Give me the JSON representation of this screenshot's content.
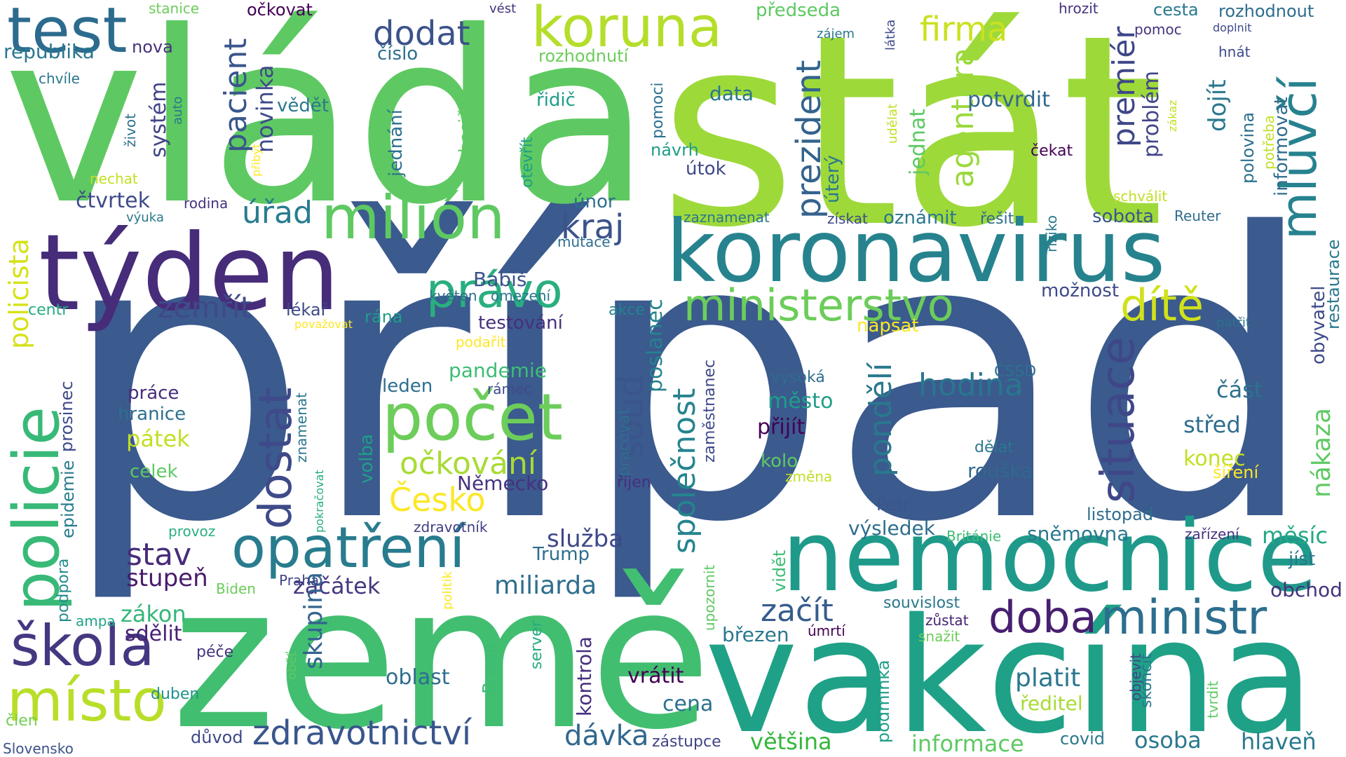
{
  "words": [
    {
      "text": "případ",
      "color": "#3b5a8e"
    },
    {
      "text": "vláda",
      "color": "#5ec962"
    },
    {
      "text": "stát",
      "color": "#9ed93a"
    },
    {
      "text": "země",
      "color": "#42be71"
    },
    {
      "text": "vakcína",
      "color": "#1fa187"
    },
    {
      "text": "týden",
      "color": "#472c7a"
    },
    {
      "text": "koronavirus",
      "color": "#26838e"
    },
    {
      "text": "nemocnice",
      "color": "#1f9a8a"
    },
    {
      "text": "test",
      "color": "#2c6b8e"
    },
    {
      "text": "koruna",
      "color": "#b5de2b"
    },
    {
      "text": "milión",
      "color": "#5ec962"
    },
    {
      "text": "počet",
      "color": "#6ccd5a"
    },
    {
      "text": "opatření",
      "color": "#287c8e"
    },
    {
      "text": "policie",
      "color": "#38b977"
    },
    {
      "text": "škola",
      "color": "#453781"
    },
    {
      "text": "místo",
      "color": "#b8de29"
    },
    {
      "text": "ministerstvo",
      "color": "#6ccd5a"
    },
    {
      "text": "ministr",
      "color": "#2c6e8e"
    },
    {
      "text": "doba",
      "color": "#481f70"
    },
    {
      "text": "dostat",
      "color": "#3e4a89"
    },
    {
      "text": "právo",
      "color": "#29af7f"
    },
    {
      "text": "situace",
      "color": "#3f4788"
    },
    {
      "text": "mluvčí",
      "color": "#26828e"
    },
    {
      "text": "dítě",
      "color": "#d0e11c"
    },
    {
      "text": "zdravotnictví",
      "color": "#39568c"
    },
    {
      "text": "dodat",
      "color": "#3b528b"
    },
    {
      "text": "firma",
      "color": "#cae11f"
    },
    {
      "text": "prezident",
      "color": "#33638d"
    },
    {
      "text": "agentura",
      "color": "#9bd93c"
    },
    {
      "text": "premiér",
      "color": "#3f4788"
    },
    {
      "text": "pacient",
      "color": "#39568c"
    },
    {
      "text": "novinka",
      "color": "#3e4a89"
    },
    {
      "text": "úřad",
      "color": "#287d8e"
    },
    {
      "text": "kraj",
      "color": "#3b528b"
    },
    {
      "text": "zemřít",
      "color": "#3e4a89"
    },
    {
      "text": "soud",
      "color": "#39558c"
    },
    {
      "text": "společnost",
      "color": "#25848e"
    },
    {
      "text": "pondělí",
      "color": "#2a788e"
    },
    {
      "text": "hodina",
      "color": "#2a768e"
    },
    {
      "text": "policista",
      "color": "#d5e21a"
    },
    {
      "text": "očkování",
      "color": "#a8db34"
    },
    {
      "text": "Česko",
      "color": "#fde725"
    },
    {
      "text": "stav",
      "color": "#472c7a"
    },
    {
      "text": "stupeň",
      "color": "#481a6c"
    },
    {
      "text": "začátek",
      "color": "#453882"
    },
    {
      "text": "miliarda",
      "color": "#2e6e8e"
    },
    {
      "text": "začít",
      "color": "#365c8d"
    },
    {
      "text": "služba",
      "color": "#3f4889"
    },
    {
      "text": "zákon",
      "color": "#35b779"
    },
    {
      "text": "sdělit",
      "color": "#482173"
    },
    {
      "text": "skupina",
      "color": "#32648e"
    },
    {
      "text": "dávka",
      "color": "#31688e"
    },
    {
      "text": "osoba",
      "color": "#2a788e"
    },
    {
      "text": "hlaveň",
      "color": "#297a8e"
    },
    {
      "text": "informace",
      "color": "#5ec962"
    },
    {
      "text": "většina",
      "color": "#33b63a"
    },
    {
      "text": "měsíc",
      "color": "#22a884"
    },
    {
      "text": "obchod",
      "color": "#46327e"
    },
    {
      "text": "jíst",
      "color": "#2a778e"
    },
    {
      "text": "platit",
      "color": "#2a778e"
    },
    {
      "text": "ředitel",
      "color": "#a8db34"
    },
    {
      "text": "oblast",
      "color": "#2e6e8e"
    },
    {
      "text": "vrátit",
      "color": "#440154"
    },
    {
      "text": "kontrola",
      "color": "#472f7d"
    },
    {
      "text": "Praga",
      "color": "#3dbc74"
    },
    {
      "text": "server",
      "color": "#25ab82"
    },
    {
      "text": "cena",
      "color": "#2c718e"
    },
    {
      "text": "zástupce",
      "color": "#414487"
    },
    {
      "text": "důvod",
      "color": "#3f4889"
    },
    {
      "text": "duben",
      "color": "#21918c"
    },
    {
      "text": "péče",
      "color": "#46327e"
    },
    {
      "text": "člen",
      "color": "#73d056"
    },
    {
      "text": "Slovensko",
      "color": "#3b528b"
    },
    {
      "text": "ampa",
      "color": "#20a486"
    },
    {
      "text": "podpora",
      "color": "#228c8d"
    },
    {
      "text": "epidemie",
      "color": "#287c8e"
    },
    {
      "text": "prosinec",
      "color": "#3e4a89"
    },
    {
      "text": "Biden",
      "color": "#6ccd5a"
    },
    {
      "text": "Praha",
      "color": "#414487"
    },
    {
      "text": "volba",
      "color": "#1f9e89"
    },
    {
      "text": "Německo",
      "color": "#46327e"
    },
    {
      "text": "říjen",
      "color": "#472f7d"
    },
    {
      "text": "Trump",
      "color": "#2e6d8e"
    },
    {
      "text": "zdravotník",
      "color": "#423f85"
    },
    {
      "text": "provoz",
      "color": "#29af7f"
    },
    {
      "text": "pátek",
      "color": "#c2df23"
    },
    {
      "text": "celek",
      "color": "#5ec962"
    },
    {
      "text": "hranice",
      "color": "#2c718e"
    },
    {
      "text": "práce",
      "color": "#472d7b"
    },
    {
      "text": "leden",
      "color": "#2e6e8e"
    },
    {
      "text": "pandemie",
      "color": "#3dbc74"
    },
    {
      "text": "rámec",
      "color": "#3e4a89"
    },
    {
      "text": "testování",
      "color": "#472f7d"
    },
    {
      "text": "lékař",
      "color": "#3e4a89"
    },
    {
      "text": "rána",
      "color": "#1f9e89"
    },
    {
      "text": "považovat",
      "color": "#fde725"
    },
    {
      "text": "podařit",
      "color": "#fde725"
    },
    {
      "text": "centr",
      "color": "#25ab82"
    },
    {
      "text": "poslanec",
      "color": "#26828e"
    },
    {
      "text": "pracovat",
      "color": "#2e6e8e"
    },
    {
      "text": "zaměstnanec",
      "color": "#3f4788"
    },
    {
      "text": "znamenat",
      "color": "#2a768e"
    },
    {
      "text": "pokračovat",
      "color": "#25ab82"
    },
    {
      "text": "akce",
      "color": "#25838e"
    },
    {
      "text": "květen",
      "color": "#2e6e8e"
    },
    {
      "text": "omezení",
      "color": "#2a788e"
    },
    {
      "text": "mutace",
      "color": "#2e6d8e"
    },
    {
      "text": "Babiš",
      "color": "#3b528b"
    },
    {
      "text": "únor",
      "color": "#2e6e8e"
    },
    {
      "text": "zaznamenat",
      "color": "#2a778e"
    },
    {
      "text": "město",
      "color": "#1f9e89"
    },
    {
      "text": "přijít",
      "color": "#440154"
    },
    {
      "text": "vysoká",
      "color": "#2e6d8e"
    },
    {
      "text": "kolo",
      "color": "#5ec962"
    },
    {
      "text": "změna",
      "color": "#c2df23"
    },
    {
      "text": "dělat",
      "color": "#2a788e"
    },
    {
      "text": "rouška",
      "color": "#31688e"
    },
    {
      "text": "ČSSD",
      "color": "#2c718e"
    },
    {
      "text": "Petr",
      "color": "#39568c"
    },
    {
      "text": "výsledek",
      "color": "#2e6e8e"
    },
    {
      "text": "sněmovna",
      "color": "#2a788e"
    },
    {
      "text": "Británie",
      "color": "#3dbc74"
    },
    {
      "text": "listopad",
      "color": "#2e6e8e"
    },
    {
      "text": "zařízení",
      "color": "#46327e"
    },
    {
      "text": "souvislost",
      "color": "#2a778e"
    },
    {
      "text": "zůstat",
      "color": "#482173"
    },
    {
      "text": "snažit",
      "color": "#6ccd5a"
    },
    {
      "text": "březen",
      "color": "#2a788e"
    },
    {
      "text": "úmrtí",
      "color": "#440154"
    },
    {
      "text": "upozornit",
      "color": "#5ec962"
    },
    {
      "text": "vidět",
      "color": "#3dbc74"
    },
    {
      "text": "podmínka",
      "color": "#1f9e89"
    },
    {
      "text": "covid",
      "color": "#2a788e"
    },
    {
      "text": "objevit",
      "color": "#414487"
    },
    {
      "text": "skončit",
      "color": "#2a778e"
    },
    {
      "text": "tvrdit",
      "color": "#5ec962"
    },
    {
      "text": "politik",
      "color": "#fde725"
    },
    {
      "text": "oběť",
      "color": "#5ec962"
    },
    {
      "text": "část",
      "color": "#2c718e"
    },
    {
      "text": "střed",
      "color": "#2e6d8e"
    },
    {
      "text": "konec",
      "color": "#c2df23"
    },
    {
      "text": "šíření",
      "color": "#fde725"
    },
    {
      "text": "nákaza",
      "color": "#5ec962"
    },
    {
      "text": "obyvatel",
      "color": "#3e4a89"
    },
    {
      "text": "restaurace",
      "color": "#2a788e"
    },
    {
      "text": "patřit",
      "color": "#2c718e"
    },
    {
      "text": "možnost",
      "color": "#3e4a89"
    },
    {
      "text": "napsat",
      "color": "#fde725"
    },
    {
      "text": "oznámit",
      "color": "#2a778e"
    },
    {
      "text": "řešit",
      "color": "#2e6d8e"
    },
    {
      "text": "riziko",
      "color": "#2a788e"
    },
    {
      "text": "sobota",
      "color": "#39568c"
    },
    {
      "text": "Reuter",
      "color": "#2e6d8e"
    },
    {
      "text": "získat",
      "color": "#3e4a89"
    },
    {
      "text": "úterý",
      "color": "#2a778e"
    },
    {
      "text": "jednat",
      "color": "#5ec962"
    },
    {
      "text": "udělat",
      "color": "#c2df23"
    },
    {
      "text": "problém",
      "color": "#414487"
    },
    {
      "text": "potvrdit",
      "color": "#31688e"
    },
    {
      "text": "čekat",
      "color": "#440154"
    },
    {
      "text": "dojít",
      "color": "#2a788e"
    },
    {
      "text": "polovina",
      "color": "#2c718e"
    },
    {
      "text": "potřeba",
      "color": "#c2df23"
    },
    {
      "text": "informovat",
      "color": "#2e6d8e"
    },
    {
      "text": "schválit",
      "color": "#c2df23"
    },
    {
      "text": "zákaz",
      "color": "#c2df23"
    },
    {
      "text": "hnát",
      "color": "#3e4a89"
    },
    {
      "text": "doplnit",
      "color": "#3e4a89"
    },
    {
      "text": "pomoc",
      "color": "#46327e"
    },
    {
      "text": "cesta",
      "color": "#2a788e"
    },
    {
      "text": "rozhodnout",
      "color": "#2e6d8e"
    },
    {
      "text": "hrozit",
      "color": "#46327e"
    },
    {
      "text": "látka",
      "color": "#3e4a89"
    },
    {
      "text": "zájem",
      "color": "#2a778e"
    },
    {
      "text": "předseda",
      "color": "#5ec962"
    },
    {
      "text": "vést",
      "color": "#46327e"
    },
    {
      "text": "rozhodnutí",
      "color": "#6ccd5a"
    },
    {
      "text": "řidič",
      "color": "#1f9e89"
    },
    {
      "text": "pomoci",
      "color": "#2c718e"
    },
    {
      "text": "data",
      "color": "#2a778e"
    },
    {
      "text": "návrh",
      "color": "#1f9e89"
    },
    {
      "text": "útok",
      "color": "#3e4a89"
    },
    {
      "text": "vědět",
      "color": "#2a788e"
    },
    {
      "text": "jednání",
      "color": "#2c718e"
    },
    {
      "text": "hasič",
      "color": "#5ec962"
    },
    {
      "text": "otevřít",
      "color": "#1f9e89"
    },
    {
      "text": "číslo",
      "color": "#2e6d8e"
    },
    {
      "text": "očkovat",
      "color": "#440154"
    },
    {
      "text": "stanice",
      "color": "#6ccd5a"
    },
    {
      "text": "republika",
      "color": "#2a778e"
    },
    {
      "text": "nova",
      "color": "#46327e"
    },
    {
      "text": "chvíle",
      "color": "#2a778e"
    },
    {
      "text": "systém",
      "color": "#414487"
    },
    {
      "text": "auto",
      "color": "#2a788e"
    },
    {
      "text": "život",
      "color": "#2c718e"
    },
    {
      "text": "přibýt",
      "color": "#fde725"
    },
    {
      "text": "nechat",
      "color": "#c2df23"
    },
    {
      "text": "čtvrtek",
      "color": "#3e4a89"
    },
    {
      "text": "rodina",
      "color": "#46327e"
    },
    {
      "text": "výuka",
      "color": "#2a788e"
    }
  ]
}
